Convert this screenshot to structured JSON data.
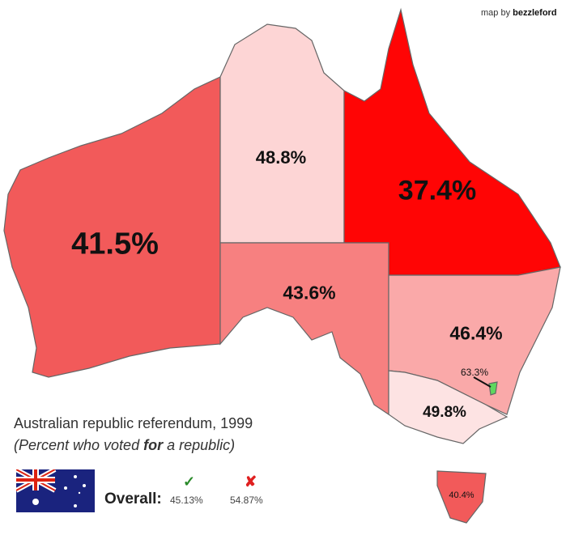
{
  "credit": {
    "prefix": "map by",
    "author": "bezzleford"
  },
  "title": "Australian republic referendum, 1999",
  "subtitle": {
    "before": "(Percent who voted ",
    "bold": "for",
    "after": " a republic)"
  },
  "overall": {
    "label": "Overall:",
    "yes": "45.13%",
    "no": "54.87%",
    "yes_icon": "check-icon",
    "no_icon": "cross-icon"
  },
  "regions": [
    {
      "value": "41.5%",
      "color": "#f25a5a"
    },
    {
      "value": "48.8%",
      "color": "#fdd5d5"
    },
    {
      "value": "37.4%",
      "color": "#ff0505"
    },
    {
      "value": "43.6%",
      "color": "#f78080"
    },
    {
      "value": "46.4%",
      "color": "#faa9a9"
    },
    {
      "value": "49.8%",
      "color": "#fde3e3"
    },
    {
      "value": "40.4%",
      "color": "#f25a5a"
    },
    {
      "value": "63.3%",
      "color": "#5ed85e"
    }
  ]
}
